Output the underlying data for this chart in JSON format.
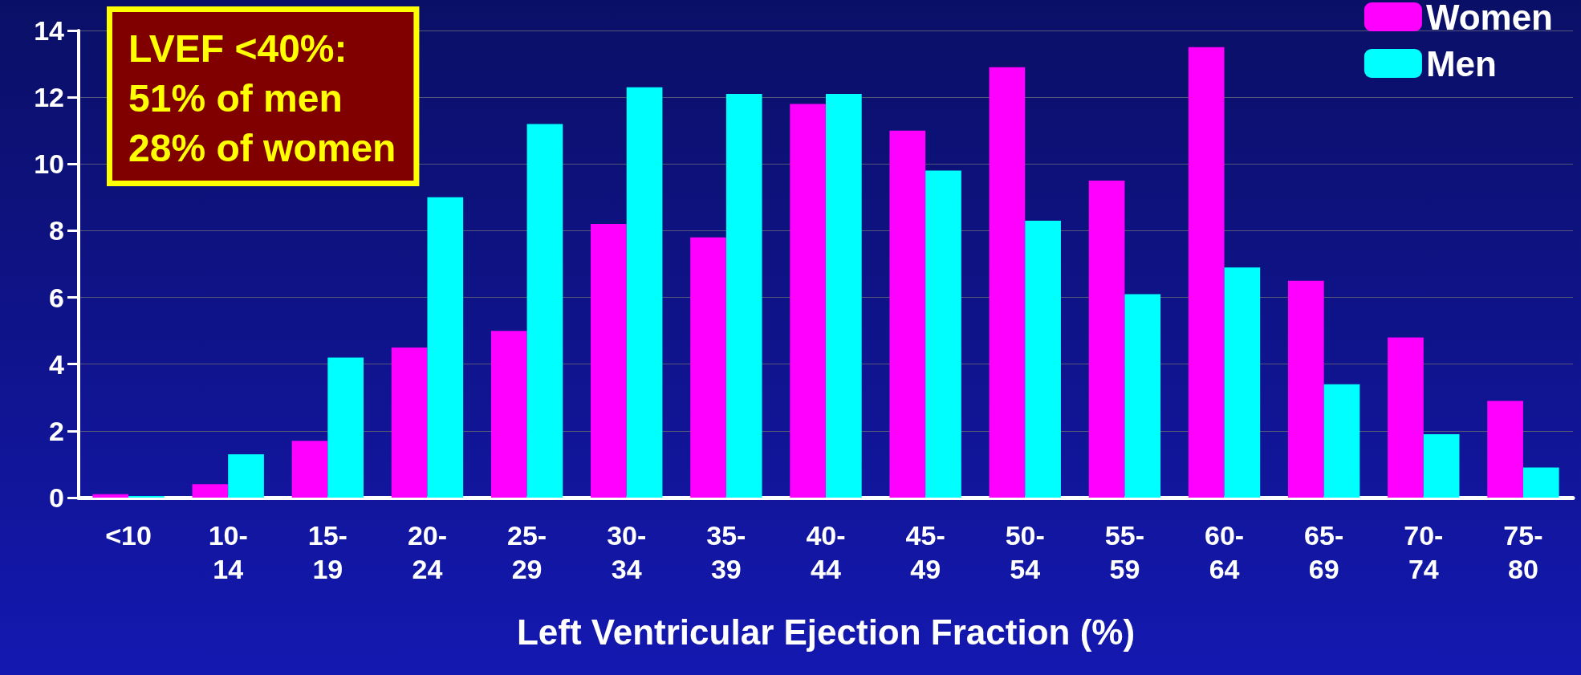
{
  "chart_data": {
    "type": "bar",
    "categories": [
      "<10",
      "10-\n14",
      "15-\n19",
      "20-\n24",
      "25-\n29",
      "30-\n34",
      "35-\n39",
      "40-\n44",
      "45-\n49",
      "50-\n54",
      "55-\n59",
      "60-\n64",
      "65-\n69",
      "70-\n74",
      "75-\n80"
    ],
    "series": [
      {
        "name": "Women",
        "color": "#ff00ff",
        "values": [
          0.1,
          0.4,
          1.7,
          4.5,
          5.0,
          8.2,
          7.8,
          11.8,
          11.0,
          12.9,
          9.5,
          13.5,
          6.5,
          4.8,
          2.9
        ]
      },
      {
        "name": "Men",
        "color": "#00ffff",
        "values": [
          0.05,
          1.3,
          4.2,
          9.0,
          11.2,
          12.3,
          12.1,
          12.1,
          9.8,
          8.3,
          6.1,
          6.9,
          3.4,
          1.9,
          0.9
        ]
      }
    ],
    "xlabel": "Left Ventricular Ejection Fraction (%)",
    "ylim": [
      0,
      14
    ],
    "yticks": [
      0,
      2,
      4,
      6,
      8,
      10,
      12,
      14
    ],
    "annotations": [
      "LVEF <40%:\n51% of men\n28% of women"
    ],
    "grid": "y",
    "legend": "top right"
  }
}
